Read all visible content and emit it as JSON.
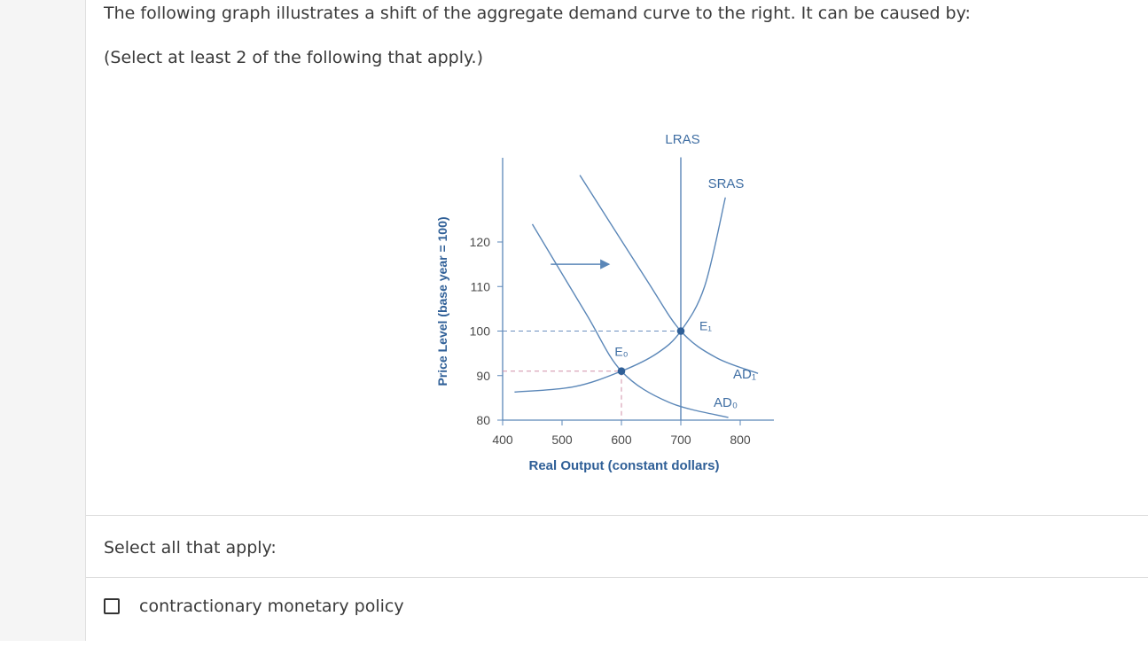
{
  "question": {
    "prompt": "The following graph illustrates a shift of the aggregate demand curve to the right. It can be caused by:",
    "instruction": "(Select at least 2 of the following that apply.)"
  },
  "chart_data": {
    "type": "line",
    "title": "",
    "xlabel": "Real Output (constant dollars)",
    "ylabel": "Price Level (base year = 100)",
    "xlim": [
      400,
      800
    ],
    "ylim": [
      80,
      120
    ],
    "x_ticks": [
      "400",
      "500",
      "600",
      "700",
      "800"
    ],
    "y_ticks": [
      "80",
      "90",
      "100",
      "110",
      "120"
    ],
    "series": [
      {
        "name": "AD₀",
        "points": [
          [
            450,
            124
          ],
          [
            540,
            104
          ],
          [
            600,
            91
          ],
          [
            680,
            84
          ],
          [
            780,
            80.6
          ]
        ]
      },
      {
        "name": "AD₁",
        "points": [
          [
            530,
            135
          ],
          [
            640,
            112
          ],
          [
            700,
            100
          ],
          [
            760,
            94
          ],
          [
            830,
            90.5
          ]
        ]
      },
      {
        "name": "SRAS",
        "points": [
          [
            420,
            86.3
          ],
          [
            520,
            87.5
          ],
          [
            600,
            91
          ],
          [
            660,
            95
          ],
          [
            700,
            100
          ],
          [
            740,
            110
          ],
          [
            775,
            130
          ]
        ]
      },
      {
        "name": "LRAS",
        "points": [
          [
            700,
            80
          ],
          [
            700,
            139
          ]
        ]
      }
    ],
    "equilibria": [
      {
        "label": "E₀",
        "x": 600,
        "y": 91
      },
      {
        "label": "E₁",
        "x": 700,
        "y": 100
      }
    ],
    "shift_arrow": {
      "from_x": 490,
      "to_x": 570,
      "y": 115
    },
    "grid": false,
    "colors": {
      "curve": "#5b87b8",
      "point": "#2f5f97",
      "dash_to_e1": "#6a8fbf",
      "dash_to_e0": "#d08fa7",
      "axis": "#5b87b8"
    }
  },
  "answers": {
    "select_all_label": "Select all that apply:",
    "options": [
      {
        "label": "contractionary monetary policy",
        "checked": false
      }
    ]
  }
}
